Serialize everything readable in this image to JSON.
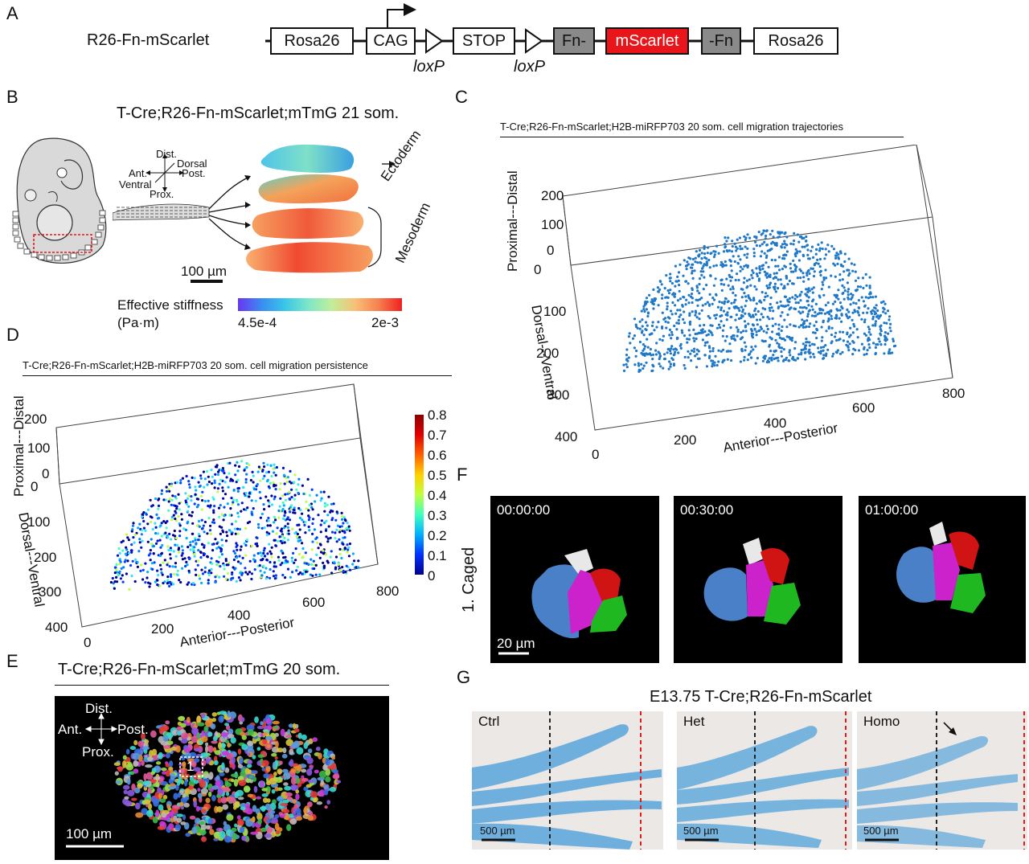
{
  "panels": {
    "A": {
      "letter": "A",
      "construct_name": "R26-Fn-mScarlet",
      "boxes": [
        "Rosa26",
        "CAG",
        "STOP",
        "Fn-",
        "mScarlet",
        "-Fn",
        "Rosa26"
      ],
      "loxp_labels": [
        "loxP",
        "loxP"
      ],
      "colors": {
        "fn": "#8a8a8a",
        "mscarlet": "#e8151b"
      }
    },
    "B": {
      "letter": "B",
      "title": "T-Cre;R26-Fn-mScarlet;mTmG 21 som.",
      "axes": {
        "dist": "Dist.",
        "dorsal": "Dorsal",
        "ant": "Ant.",
        "post": "Post.",
        "ventral": "Ventral",
        "prox": "Prox."
      },
      "layer_labels": {
        "ectoderm": "Ectoderm",
        "mesoderm": "Mesoderm"
      },
      "scale_bar": "100 µm",
      "colorbar": {
        "title": "Effective stiffness",
        "unit": "(Pa·m)",
        "min": "4.5e-4",
        "max": "2e-3"
      }
    },
    "C": {
      "letter": "C",
      "title": "T-Cre;R26-Fn-mScarlet;H2B-miRFP703 20 som. cell migration trajectories",
      "z_label": "Proximal---Distal",
      "y_label": "Dorsal---Ventral",
      "x_label": "Anterior---Posterior",
      "z_ticks": [
        "200",
        "100",
        "0"
      ],
      "y_ticks": [
        "0",
        "100",
        "200",
        "300",
        "400"
      ],
      "x_ticks": [
        "0",
        "200",
        "400",
        "600",
        "800"
      ]
    },
    "D": {
      "letter": "D",
      "title": "T-Cre;R26-Fn-mScarlet;H2B-miRFP703 20 som. cell migration persistence",
      "z_label": "Proximal---Distal",
      "y_label": "Dorsal---Ventral",
      "x_label": "Anterior---Posterior",
      "z_ticks": [
        "200",
        "100",
        "0"
      ],
      "y_ticks": [
        "0",
        "100",
        "200",
        "300",
        "400"
      ],
      "x_ticks": [
        "0",
        "200",
        "400",
        "600",
        "800"
      ],
      "colorbar_ticks": [
        "0.8",
        "0.7",
        "0.6",
        "0.5",
        "0.4",
        "0.3",
        "0.2",
        "0.1",
        "0"
      ]
    },
    "E": {
      "letter": "E",
      "title": "T-Cre;R26-Fn-mScarlet;mTmG 20 som.",
      "axes": {
        "dist": "Dist.",
        "ant": "Ant.",
        "post": "Post.",
        "prox": "Prox."
      },
      "roi_label": "1",
      "scale_bar": "100 µm"
    },
    "F": {
      "letter": "F",
      "row_label": "1. Caged",
      "timestamps": [
        "00:00:00",
        "00:30:00",
        "01:00:00"
      ],
      "scale_bar": "20 µm"
    },
    "G": {
      "letter": "G",
      "title": "E13.75 T-Cre;R26-Fn-mScarlet",
      "conditions": [
        "Ctrl",
        "Het",
        "Homo"
      ],
      "scale_bar": "500 µm"
    }
  }
}
